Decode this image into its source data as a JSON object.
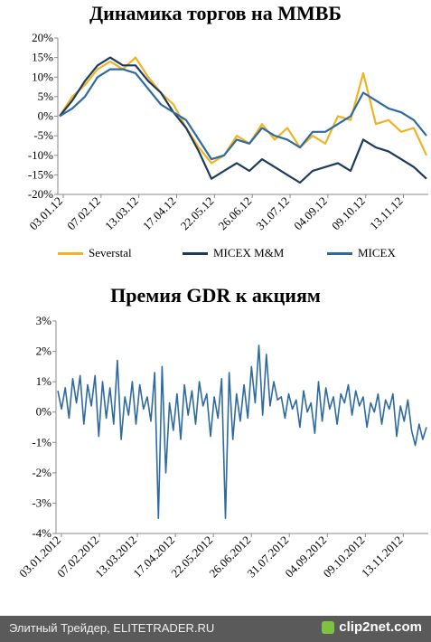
{
  "chart_data": [
    {
      "type": "line",
      "title": "Динамика торгов на ММВБ",
      "ylim": [
        -20,
        20
      ],
      "y_ticks": [
        "20%",
        "15%",
        "10%",
        "5%",
        "0%",
        "-5%",
        "-10%",
        "-15%",
        "-20%"
      ],
      "x_ticks": [
        "03.01.12",
        "07.02.12",
        "13.03.12",
        "17.04.12",
        "22.05.12",
        "26.06.12",
        "31.07.12",
        "04.09.12",
        "09.10.12",
        "13.11.12"
      ],
      "grid": false,
      "legend_position": "bottom",
      "series": [
        {
          "name": "Severstal",
          "color": "#f0b323",
          "values": [
            0,
            5,
            8,
            12,
            14,
            12,
            15,
            10,
            6,
            3,
            -3,
            -8,
            -12,
            -10,
            -5,
            -7,
            -2,
            -6,
            -3,
            -8,
            -5,
            -7,
            0,
            -1,
            11,
            -2,
            -1,
            -4,
            -3,
            -10
          ]
        },
        {
          "name": "MICEX M&M",
          "color": "#1c3a5c",
          "values": [
            0,
            4,
            9,
            13,
            15,
            13,
            13,
            9,
            6,
            1,
            -3,
            -9,
            -16,
            -14,
            -12,
            -14,
            -11,
            -13,
            -15,
            -17,
            -14,
            -13,
            -12,
            -14,
            -6,
            -8,
            -9,
            -11,
            -13,
            -16
          ]
        },
        {
          "name": "MICEX",
          "color": "#2e6aa0",
          "values": [
            0,
            2,
            5,
            10,
            12,
            12,
            11,
            7,
            3,
            1,
            -1,
            -6,
            -11,
            -10,
            -6,
            -7,
            -3,
            -5,
            -6,
            -8,
            -4,
            -4,
            -2,
            0,
            6,
            4,
            2,
            1,
            -1,
            -5
          ]
        }
      ]
    },
    {
      "type": "line",
      "title": "Премия GDR к акциям",
      "ylim": [
        -4,
        3
      ],
      "y_ticks": [
        "3%",
        "2%",
        "1%",
        "0%",
        "-1%",
        "-2%",
        "-3%",
        "-4%"
      ],
      "x_ticks": [
        "03.01.2012",
        "07.02.2012",
        "13.03.2012",
        "17.04.2012",
        "22.05.2012",
        "26.06.2012",
        "31.07.2012",
        "04.09.2012",
        "09.10.2012",
        "13.11.2012"
      ],
      "grid": false,
      "series": [
        {
          "name": "",
          "color": "#2e6aa0",
          "values": [
            0.7,
            0.1,
            0.8,
            -0.2,
            1.1,
            0.3,
            1.2,
            -0.4,
            0.9,
            0.2,
            1.2,
            -0.8,
            1.0,
            -0.2,
            0.8,
            -0.4,
            1.7,
            -0.9,
            0.5,
            -0.1,
            1.0,
            -0.4,
            0.9,
            0.1,
            0.5,
            -0.3,
            1.3,
            -3.5,
            1.5,
            -2.0,
            0.3,
            -0.6,
            0.6,
            -0.9,
            0.9,
            -0.1,
            0.7,
            -0.4,
            1.0,
            0.2,
            0.6,
            -0.8,
            0.5,
            -0.2,
            1.1,
            -3.5,
            1.3,
            -0.9,
            0.6,
            -0.3,
            0.9,
            -0.2,
            1.5,
            0.3,
            2.2,
            -0.1,
            1.9,
            0.2,
            1.0,
            0.4,
            0.5,
            -0.2,
            0.6,
            0.1,
            0.4,
            -0.5,
            0.7,
            0.0,
            0.3,
            -0.7,
            1.0,
            -0.3,
            0.8,
            0.1,
            0.5,
            -0.4,
            0.6,
            0.3,
            0.9,
            -0.1,
            0.7,
            0.2,
            0.5,
            -0.5,
            0.3,
            0.0,
            0.6,
            -0.4,
            0.4,
            0.1,
            0.6,
            -0.8,
            0.2,
            -0.3,
            0.4,
            -0.6,
            -1.1,
            -0.4,
            -0.9,
            -0.5
          ]
        }
      ]
    }
  ],
  "footer": {
    "text": "Элитный Трейдер, ELITETRADER.RU",
    "brand": "clip2net.com"
  }
}
